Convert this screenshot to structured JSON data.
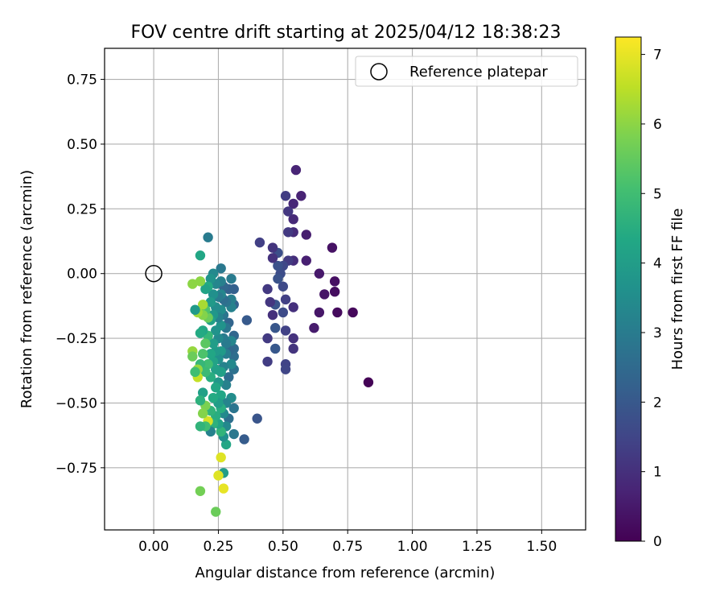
{
  "chart_data": {
    "type": "scatter",
    "title": "FOV centre drift starting at 2025/04/12 18:38:23",
    "xlabel": "Angular distance from reference (arcmin)",
    "ylabel": "Rotation from reference (arcmin)",
    "xlim": [
      -0.19,
      1.67
    ],
    "ylim": [
      -0.99,
      0.87
    ],
    "xticks": [
      "0.00",
      "0.25",
      "0.50",
      "0.75",
      "1.00",
      "1.25",
      "1.50"
    ],
    "xtick_values": [
      0,
      0.25,
      0.5,
      0.75,
      1.0,
      1.25,
      1.5
    ],
    "yticks": [
      "0.75",
      "0.50",
      "0.25",
      "0.00",
      "−0.25",
      "−0.50",
      "−0.75"
    ],
    "ytick_values": [
      0.75,
      0.5,
      0.25,
      0,
      -0.25,
      -0.5,
      -0.75
    ],
    "grid": true,
    "legend": {
      "position": "top-right",
      "entries": [
        "Reference platepar"
      ]
    },
    "reference_point": {
      "x": 0.0,
      "y": 0.0,
      "label": "Reference platepar"
    },
    "colorbar": {
      "label": "Hours from first FF file",
      "range": [
        0,
        7.25
      ],
      "ticks": [
        "0",
        "1",
        "2",
        "3",
        "4",
        "5",
        "6",
        "7"
      ],
      "tick_values": [
        0,
        1,
        2,
        3,
        4,
        5,
        6,
        7
      ],
      "colormap": "viridis"
    },
    "series": [
      {
        "points": [
          [
            0.83,
            -0.42,
            0.05
          ],
          [
            0.77,
            -0.15,
            0.15
          ],
          [
            0.71,
            -0.15,
            0.2
          ],
          [
            0.7,
            -0.07,
            0.25
          ],
          [
            0.7,
            -0.03,
            0.3
          ],
          [
            0.69,
            0.1,
            0.35
          ],
          [
            0.66,
            -0.08,
            0.4
          ],
          [
            0.64,
            -0.15,
            0.45
          ],
          [
            0.64,
            0.0,
            0.5
          ],
          [
            0.62,
            -0.21,
            0.55
          ],
          [
            0.59,
            0.15,
            0.6
          ],
          [
            0.59,
            0.05,
            0.65
          ],
          [
            0.57,
            0.3,
            0.7
          ],
          [
            0.55,
            0.4,
            0.75
          ],
          [
            0.54,
            0.27,
            0.8
          ],
          [
            0.54,
            0.21,
            0.85
          ],
          [
            0.54,
            0.16,
            0.9
          ],
          [
            0.54,
            0.05,
            0.95
          ],
          [
            0.54,
            -0.13,
            1.0
          ],
          [
            0.54,
            -0.25,
            1.05
          ],
          [
            0.54,
            -0.29,
            1.1
          ],
          [
            0.52,
            0.24,
            1.15
          ],
          [
            0.52,
            0.16,
            1.2
          ],
          [
            0.52,
            0.05,
            1.25
          ],
          [
            0.51,
            0.3,
            1.3
          ],
          [
            0.51,
            -0.1,
            1.35
          ],
          [
            0.51,
            -0.22,
            1.4
          ],
          [
            0.51,
            -0.35,
            1.45
          ],
          [
            0.51,
            -0.37,
            1.5
          ],
          [
            0.5,
            0.03,
            1.55
          ],
          [
            0.5,
            -0.05,
            1.6
          ],
          [
            0.5,
            -0.15,
            1.65
          ],
          [
            0.49,
            0.0,
            1.7
          ],
          [
            0.48,
            0.08,
            1.75
          ],
          [
            0.48,
            0.03,
            1.8
          ],
          [
            0.48,
            -0.02,
            1.85
          ],
          [
            0.47,
            -0.12,
            1.9
          ],
          [
            0.47,
            -0.21,
            1.95
          ],
          [
            0.47,
            -0.29,
            2.0
          ],
          [
            0.46,
            0.1,
            1.1
          ],
          [
            0.46,
            0.06,
            1.05
          ],
          [
            0.46,
            -0.16,
            1.0
          ],
          [
            0.45,
            -0.11,
            1.15
          ],
          [
            0.44,
            -0.06,
            1.2
          ],
          [
            0.44,
            -0.25,
            1.25
          ],
          [
            0.44,
            -0.34,
            1.3
          ],
          [
            0.41,
            0.12,
            1.35
          ],
          [
            0.4,
            -0.56,
            1.9
          ],
          [
            0.36,
            -0.18,
            2.05
          ],
          [
            0.35,
            -0.64,
            2.1
          ],
          [
            0.31,
            -0.06,
            2.2
          ],
          [
            0.31,
            -0.12,
            2.3
          ],
          [
            0.31,
            -0.24,
            2.4
          ],
          [
            0.31,
            -0.29,
            2.5
          ],
          [
            0.31,
            -0.32,
            2.6
          ],
          [
            0.31,
            -0.37,
            2.7
          ],
          [
            0.31,
            -0.52,
            2.8
          ],
          [
            0.31,
            -0.62,
            2.9
          ],
          [
            0.3,
            -0.02,
            3.0
          ],
          [
            0.3,
            -0.1,
            3.1
          ],
          [
            0.3,
            -0.13,
            3.2
          ],
          [
            0.3,
            -0.26,
            3.3
          ],
          [
            0.3,
            -0.35,
            3.4
          ],
          [
            0.3,
            -0.48,
            3.5
          ],
          [
            0.29,
            -0.06,
            2.25
          ],
          [
            0.29,
            -0.19,
            2.35
          ],
          [
            0.29,
            -0.3,
            2.45
          ],
          [
            0.29,
            -0.4,
            2.55
          ],
          [
            0.29,
            -0.56,
            2.65
          ],
          [
            0.28,
            -0.11,
            2.75
          ],
          [
            0.28,
            -0.21,
            2.85
          ],
          [
            0.28,
            -0.27,
            2.95
          ],
          [
            0.28,
            -0.31,
            3.05
          ],
          [
            0.28,
            -0.43,
            3.15
          ],
          [
            0.28,
            -0.5,
            3.25
          ],
          [
            0.28,
            -0.59,
            3.35
          ],
          [
            0.28,
            -0.66,
            4.3
          ],
          [
            0.27,
            -0.05,
            2.4
          ],
          [
            0.27,
            -0.1,
            2.6
          ],
          [
            0.27,
            -0.16,
            2.8
          ],
          [
            0.27,
            -0.25,
            3.0
          ],
          [
            0.27,
            -0.36,
            3.2
          ],
          [
            0.27,
            -0.54,
            3.4
          ],
          [
            0.27,
            -0.63,
            3.6
          ],
          [
            0.27,
            -0.77,
            4.0
          ],
          [
            0.27,
            -0.83,
            7.0
          ],
          [
            0.26,
            0.02,
            2.9
          ],
          [
            0.26,
            -0.03,
            3.1
          ],
          [
            0.26,
            -0.08,
            3.3
          ],
          [
            0.26,
            -0.14,
            3.5
          ],
          [
            0.26,
            -0.2,
            3.7
          ],
          [
            0.26,
            -0.3,
            3.9
          ],
          [
            0.26,
            -0.38,
            4.1
          ],
          [
            0.26,
            -0.47,
            4.3
          ],
          [
            0.26,
            -0.52,
            4.5
          ],
          [
            0.26,
            -0.61,
            4.7
          ],
          [
            0.26,
            -0.71,
            6.9
          ],
          [
            0.25,
            -0.09,
            3.0
          ],
          [
            0.25,
            -0.17,
            3.2
          ],
          [
            0.25,
            -0.25,
            3.4
          ],
          [
            0.25,
            -0.33,
            3.6
          ],
          [
            0.25,
            -0.42,
            3.8
          ],
          [
            0.25,
            -0.5,
            4.0
          ],
          [
            0.25,
            -0.58,
            4.2
          ],
          [
            0.25,
            -0.78,
            6.9
          ],
          [
            0.24,
            -0.04,
            3.3
          ],
          [
            0.24,
            -0.13,
            3.5
          ],
          [
            0.24,
            -0.22,
            3.7
          ],
          [
            0.24,
            -0.3,
            3.9
          ],
          [
            0.24,
            -0.37,
            4.1
          ],
          [
            0.24,
            -0.44,
            4.3
          ],
          [
            0.24,
            -0.55,
            4.5
          ],
          [
            0.24,
            -0.92,
            5.6
          ],
          [
            0.23,
            0.0,
            3.4
          ],
          [
            0.23,
            -0.08,
            3.6
          ],
          [
            0.23,
            -0.16,
            3.8
          ],
          [
            0.23,
            -0.27,
            4.0
          ],
          [
            0.23,
            -0.34,
            4.2
          ],
          [
            0.23,
            -0.48,
            4.4
          ],
          [
            0.23,
            -0.58,
            4.6
          ],
          [
            0.22,
            -0.02,
            3.7
          ],
          [
            0.22,
            -0.11,
            3.9
          ],
          [
            0.22,
            -0.18,
            4.1
          ],
          [
            0.22,
            -0.31,
            4.3
          ],
          [
            0.22,
            -0.4,
            4.5
          ],
          [
            0.22,
            -0.53,
            4.7
          ],
          [
            0.22,
            -0.61,
            3.2
          ],
          [
            0.21,
            0.14,
            3.0
          ],
          [
            0.21,
            -0.05,
            4.4
          ],
          [
            0.21,
            -0.17,
            5.6
          ],
          [
            0.21,
            -0.24,
            4.8
          ],
          [
            0.21,
            -0.35,
            5.0
          ],
          [
            0.21,
            -0.57,
            6.8
          ],
          [
            0.2,
            -0.06,
            4.2
          ],
          [
            0.2,
            -0.14,
            5.2
          ],
          [
            0.2,
            -0.27,
            5.4
          ],
          [
            0.2,
            -0.38,
            4.9
          ],
          [
            0.2,
            -0.51,
            5.8
          ],
          [
            0.2,
            -0.59,
            5.0
          ],
          [
            0.19,
            -0.12,
            6.3
          ],
          [
            0.19,
            -0.16,
            5.9
          ],
          [
            0.19,
            -0.22,
            4.3
          ],
          [
            0.19,
            -0.31,
            5.2
          ],
          [
            0.19,
            -0.46,
            4.1
          ],
          [
            0.19,
            -0.54,
            5.9
          ],
          [
            0.18,
            0.07,
            4.3
          ],
          [
            0.18,
            -0.03,
            6.0
          ],
          [
            0.18,
            -0.23,
            4.4
          ],
          [
            0.18,
            -0.35,
            4.8
          ],
          [
            0.18,
            -0.49,
            4.6
          ],
          [
            0.18,
            -0.59,
            4.7
          ],
          [
            0.18,
            -0.84,
            5.7
          ],
          [
            0.17,
            -0.15,
            6.2
          ],
          [
            0.17,
            -0.37,
            6.1
          ],
          [
            0.17,
            -0.4,
            6.6
          ],
          [
            0.16,
            -0.14,
            3.9
          ],
          [
            0.16,
            -0.38,
            5.0
          ],
          [
            0.15,
            -0.04,
            6.0
          ],
          [
            0.15,
            -0.3,
            6.1
          ],
          [
            0.15,
            -0.32,
            5.6
          ]
        ]
      }
    ]
  }
}
